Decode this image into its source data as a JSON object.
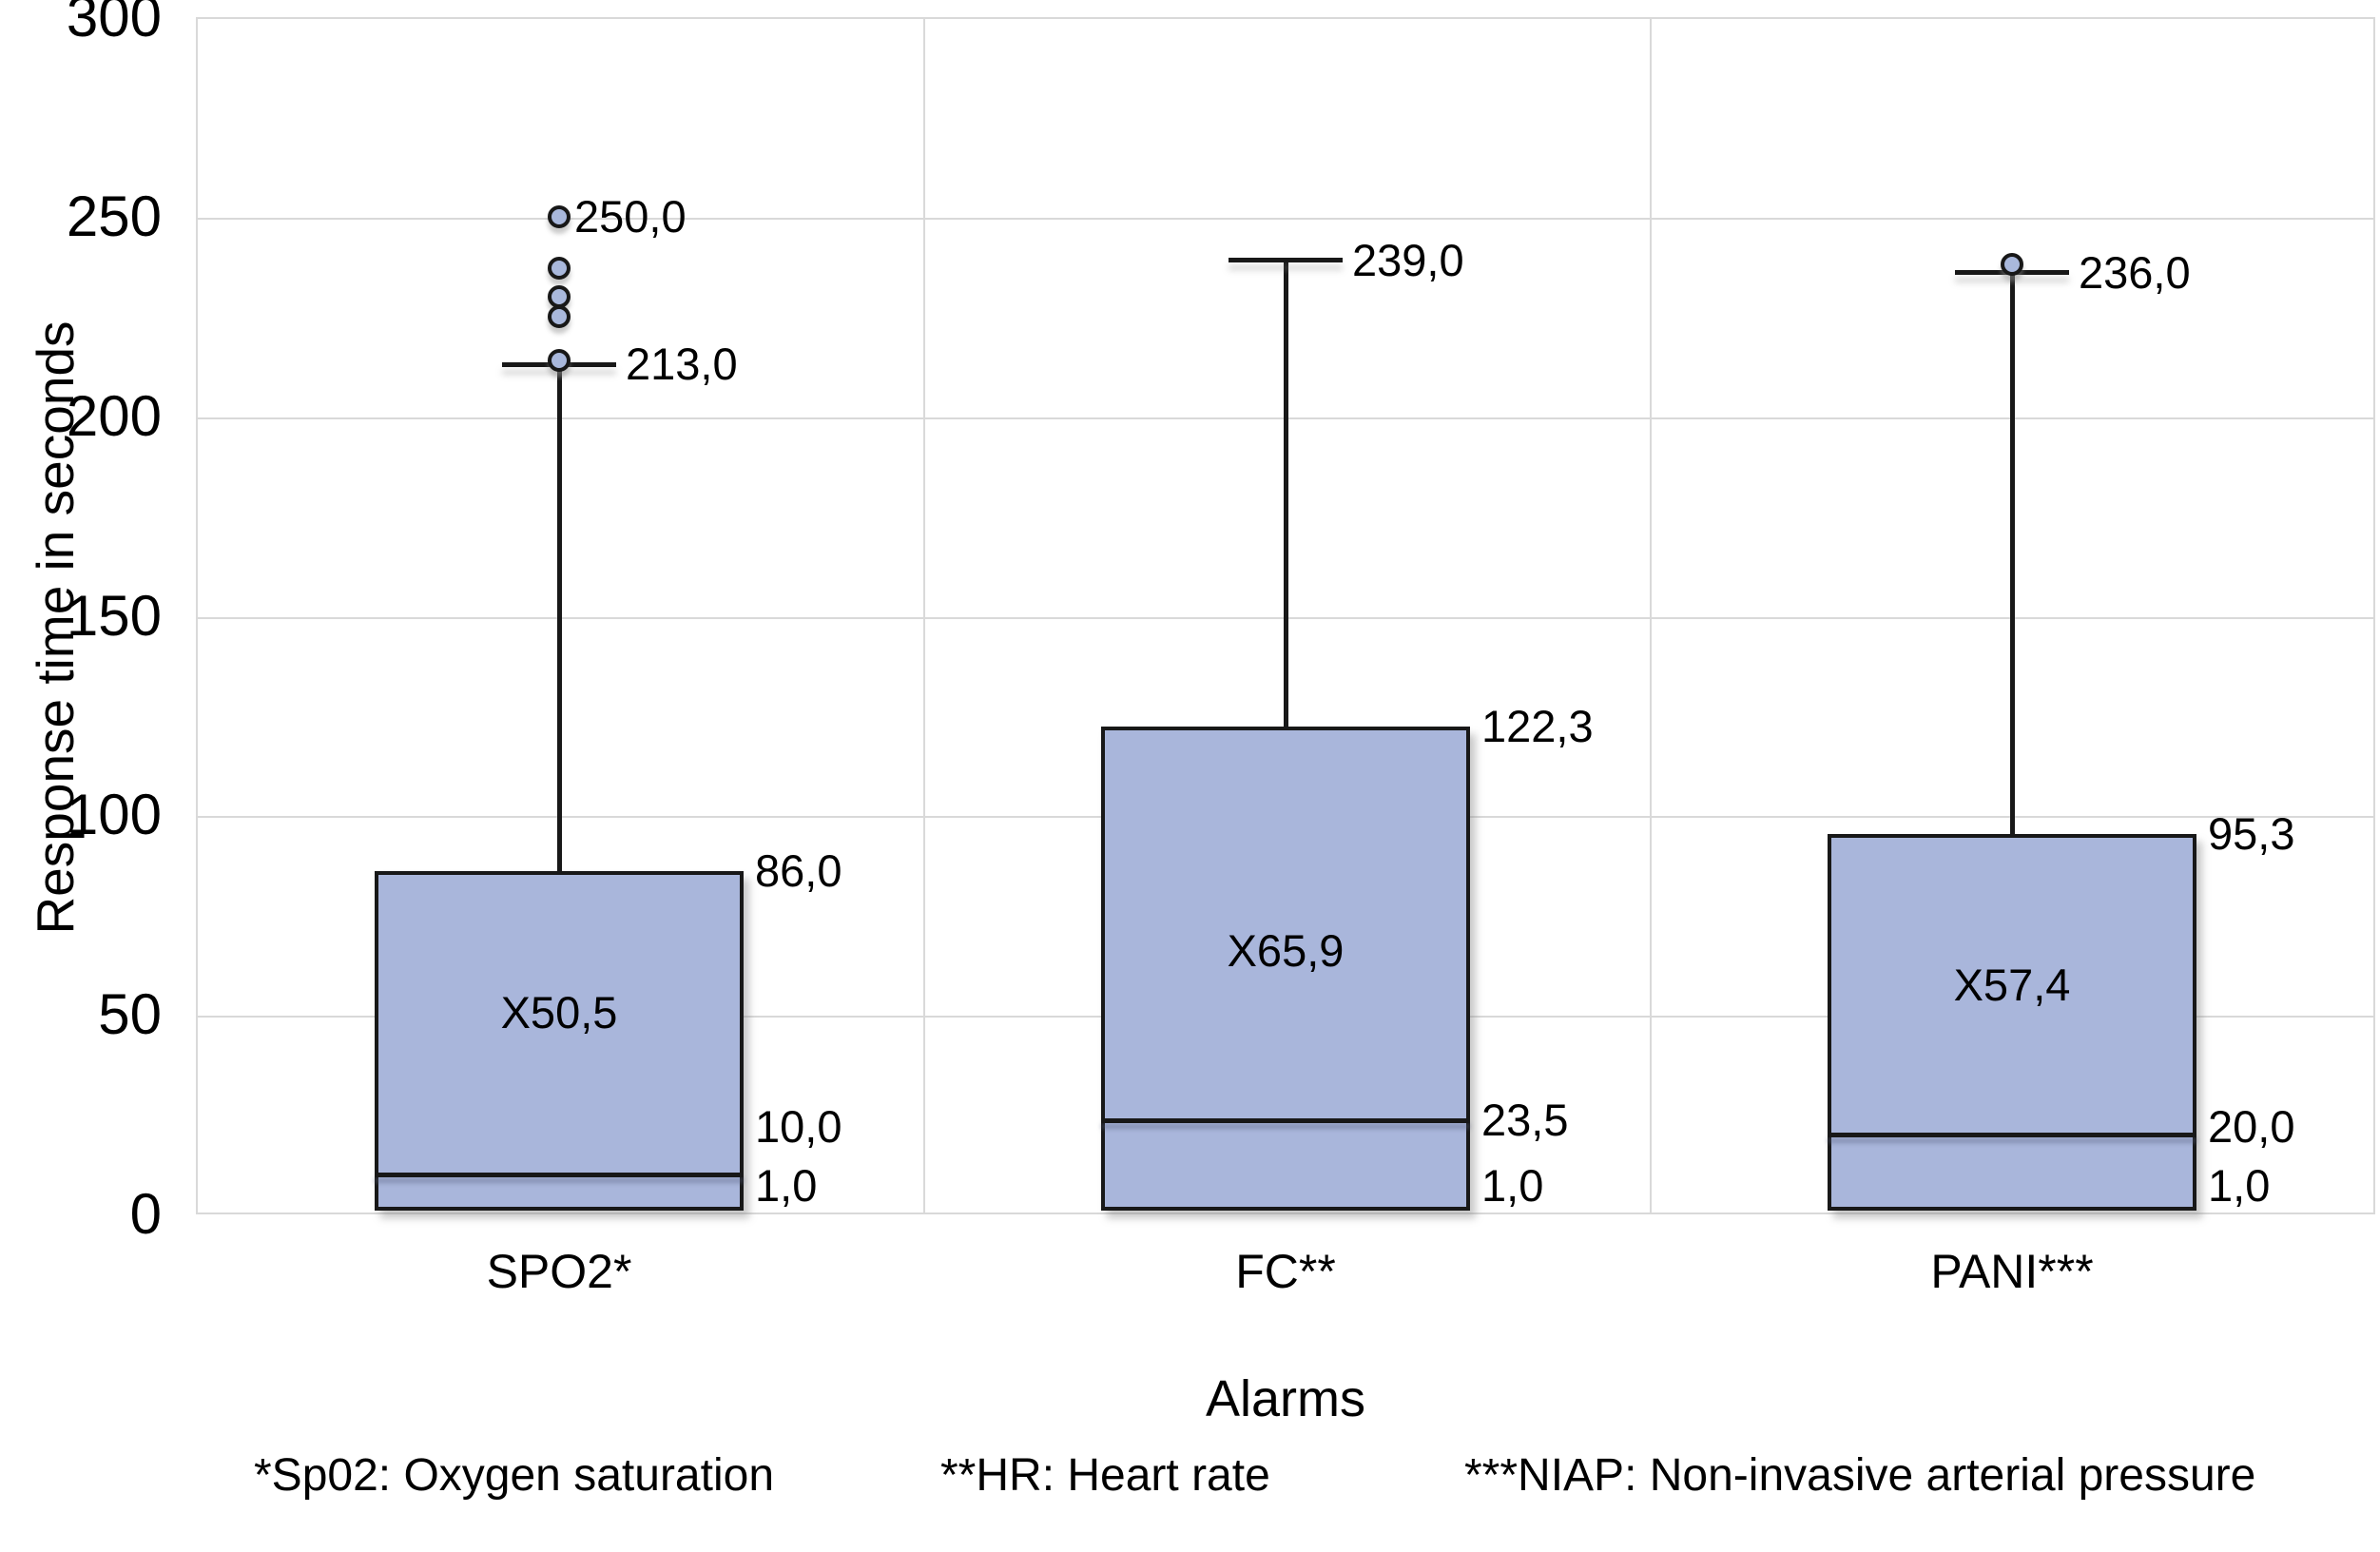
{
  "chart_data": {
    "type": "boxplot",
    "title": "",
    "xlabel": "Alarms",
    "ylabel": "Response time in seconds",
    "ylim": [
      0,
      300
    ],
    "yticks": [
      0,
      50,
      100,
      150,
      200,
      250,
      300
    ],
    "grid": "horizontal gridlines every 50; vertical panel separators between categories; light gray plot border",
    "legend": "none",
    "decimal_separator": ",",
    "box_fill_color": "#a9b6db",
    "line_color": "#181818",
    "gridline_color": "#d9d9d9",
    "categories": [
      "SPO2*",
      "FC**",
      "PANI***"
    ],
    "series": [
      {
        "category": "SPO2*",
        "min": 1.0,
        "q1": 1.0,
        "median": 10.0,
        "q3": 86.0,
        "whisker_high": 213.0,
        "mean": 50.5,
        "outliers": [
          250.0,
          237.0,
          230.0,
          225.0,
          214.0
        ],
        "labels": {
          "outlier_max": "250,0",
          "whisker_high": "213,0",
          "q3": "86,0",
          "median": "10,0",
          "min": "1,0",
          "mean": "X50,5"
        }
      },
      {
        "category": "FC**",
        "min": 1.0,
        "q1": 1.0,
        "median": 23.5,
        "q3": 122.3,
        "whisker_high": 239.0,
        "mean": 65.9,
        "outliers": [],
        "labels": {
          "whisker_high": "239,0",
          "q3": "122,3",
          "median": "23,5",
          "min": "1,0",
          "mean": "X65,9"
        }
      },
      {
        "category": "PANI***",
        "min": 1.0,
        "q1": 1.0,
        "median": 20.0,
        "q3": 95.3,
        "whisker_high": 236.0,
        "mean": 57.4,
        "outliers": [
          238.0
        ],
        "labels": {
          "whisker_high": "236,0",
          "q3": "95,3",
          "median": "20,0",
          "min": "1,0",
          "mean": "X57,4"
        }
      }
    ],
    "footnotes": [
      "*Sp02: Oxygen saturation",
      "**HR: Heart rate",
      "***NIAP: Non-invasive arterial pressure"
    ]
  }
}
